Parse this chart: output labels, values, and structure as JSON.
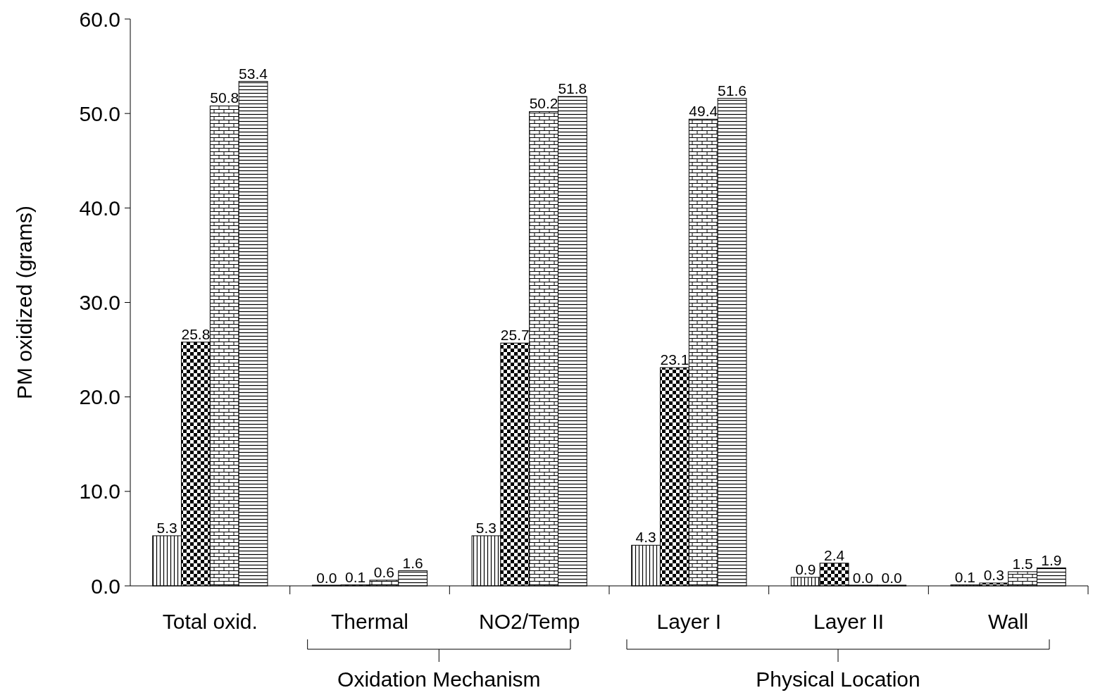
{
  "chart_data": {
    "type": "bar",
    "ylabel": "PM oxidized (grams)",
    "categories": [
      "Total oxid.",
      "Thermal",
      "NO2/Temp",
      "Layer I",
      "Layer II",
      "Wall"
    ],
    "series": [
      {
        "color": "#000000",
        "values": [
          5.3,
          0.0,
          5.3,
          4.3,
          0.9,
          0.1
        ],
        "value_labels": [
          "5.3",
          "0.0",
          "5.3",
          "4.3",
          "0.9",
          "0.1"
        ]
      },
      {
        "color": "#000000",
        "values": [
          25.8,
          0.1,
          25.7,
          23.1,
          2.4,
          0.3
        ],
        "value_labels": [
          "25.8",
          "0.1",
          "25.7",
          "23.1",
          "2.4",
          "0.3"
        ]
      },
      {
        "color": "#000000",
        "values": [
          50.8,
          0.6,
          50.2,
          49.4,
          0.0,
          1.5
        ],
        "value_labels": [
          "50.8",
          "0.6",
          "50.2",
          "49.4",
          "0.0",
          "1.5"
        ]
      },
      {
        "color": "#000000",
        "values": [
          53.4,
          1.6,
          51.8,
          51.6,
          0.0,
          1.9
        ],
        "value_labels": [
          "53.4",
          "1.6",
          "51.8",
          "51.6",
          "0.0",
          "1.9"
        ]
      }
    ],
    "ylim": [
      0,
      60
    ],
    "yticks": [
      {
        "value": 0,
        "label": "0.0"
      },
      {
        "value": 10,
        "label": "10.0"
      },
      {
        "value": 20,
        "label": "20.0"
      },
      {
        "value": 30,
        "label": "30.0"
      },
      {
        "value": 40,
        "label": "40.0"
      },
      {
        "value": 50,
        "label": "50.0"
      },
      {
        "value": 60,
        "label": "60.0"
      }
    ],
    "grid": false,
    "annotations": [
      "Oxidation Mechanism",
      "Physical Location"
    ]
  }
}
